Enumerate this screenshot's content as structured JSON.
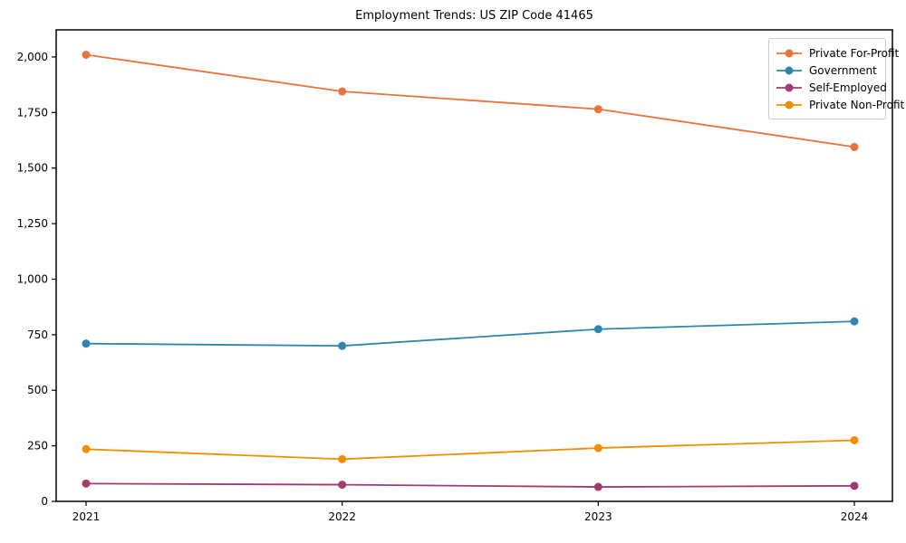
{
  "title": "Employment Trends: US ZIP Code 41465",
  "chart_data": {
    "type": "line",
    "x": [
      2021,
      2022,
      2023,
      2024
    ],
    "xtick_labels": [
      "2021",
      "2022",
      "2023",
      "2024"
    ],
    "series": [
      {
        "name": "Private For-Profit",
        "color": "#E8743B",
        "values": [
          2010,
          1845,
          1765,
          1595
        ]
      },
      {
        "name": "Government",
        "color": "#2E86AB",
        "values": [
          710,
          700,
          775,
          810
        ]
      },
      {
        "name": "Self-Employed",
        "color": "#A23B72",
        "values": [
          80,
          75,
          65,
          70
        ]
      },
      {
        "name": "Private Non-Profit",
        "color": "#F18F01",
        "values": [
          235,
          190,
          240,
          275
        ]
      }
    ],
    "ylim": [
      0,
      2122
    ],
    "yticks": [
      0,
      250,
      500,
      750,
      1000,
      1250,
      1500,
      1750,
      2000
    ],
    "ytick_labels": [
      "0",
      "250",
      "500",
      "750",
      "1,000",
      "1,250",
      "1,500",
      "1,750",
      "2,000"
    ],
    "grid": false,
    "legend_position": "upper right",
    "marker": "o",
    "frame_color": "#000000"
  }
}
